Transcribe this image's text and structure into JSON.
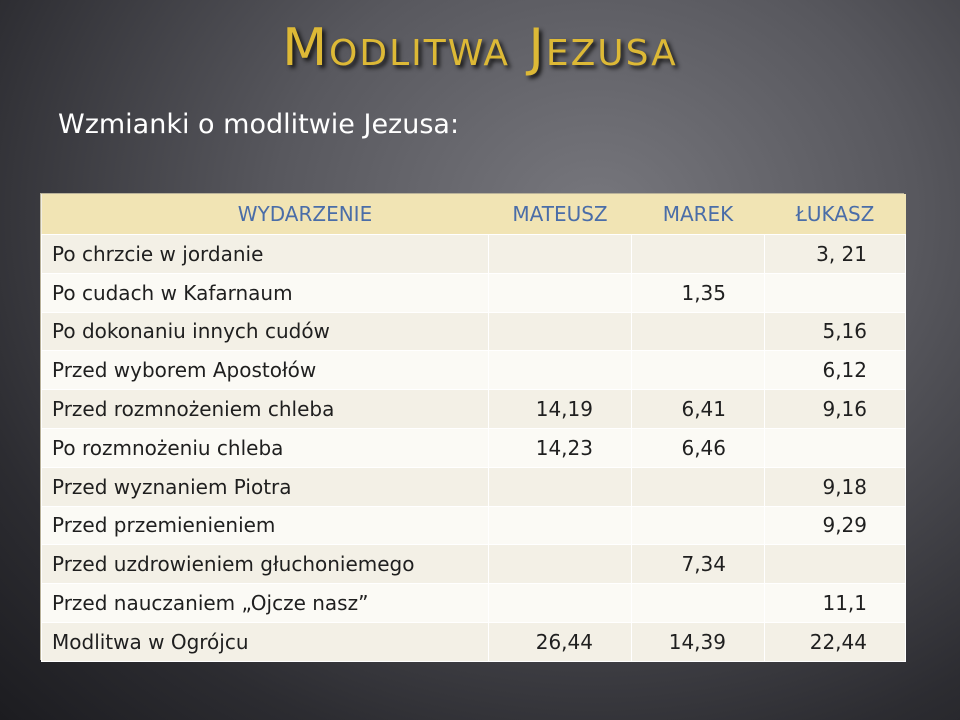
{
  "slide": {
    "title": "Modlitwa Jezusa",
    "subtitle": "Wzmianki o modlitwie Jezusa:"
  },
  "table": {
    "headers": {
      "event": "WYDARZENIE",
      "mateusz": "MATEUSZ",
      "marek": "MAREK",
      "lukasz": "ŁUKASZ"
    },
    "rows": [
      {
        "event": "Po chrzcie w jordanie",
        "mateusz": "",
        "marek": "",
        "lukasz": "3, 21"
      },
      {
        "event": "Po cudach w Kafarnaum",
        "mateusz": "",
        "marek": "1,35",
        "lukasz": ""
      },
      {
        "event": "Po dokonaniu innych cudów",
        "mateusz": "",
        "marek": "",
        "lukasz": "5,16"
      },
      {
        "event": "Przed wyborem Apostołów",
        "mateusz": "",
        "marek": "",
        "lukasz": "6,12"
      },
      {
        "event": "Przed rozmnożeniem chleba",
        "mateusz": "14,19",
        "marek": "6,41",
        "lukasz": "9,16"
      },
      {
        "event": "Po rozmnożeniu chleba",
        "mateusz": "14,23",
        "marek": "6,46",
        "lukasz": ""
      },
      {
        "event": "Przed wyznaniem Piotra",
        "mateusz": "",
        "marek": "",
        "lukasz": "9,18"
      },
      {
        "event": "Przed przemienieniem",
        "mateusz": "",
        "marek": "",
        "lukasz": "9,29"
      },
      {
        "event": "Przed uzdrowieniem głuchoniemego",
        "mateusz": "",
        "marek": "7,34",
        "lukasz": ""
      },
      {
        "event": "Przed nauczaniem „Ojcze nasz”",
        "mateusz": "",
        "marek": "",
        "lukasz": "11,1"
      },
      {
        "event": "Modlitwa w Ogrójcu",
        "mateusz": "26,44",
        "marek": "14,39",
        "lukasz": "22,44"
      }
    ]
  },
  "colors": {
    "title": "#ddb936",
    "header_text": "#4a6da8",
    "header_bg": "#f1e4b4"
  }
}
